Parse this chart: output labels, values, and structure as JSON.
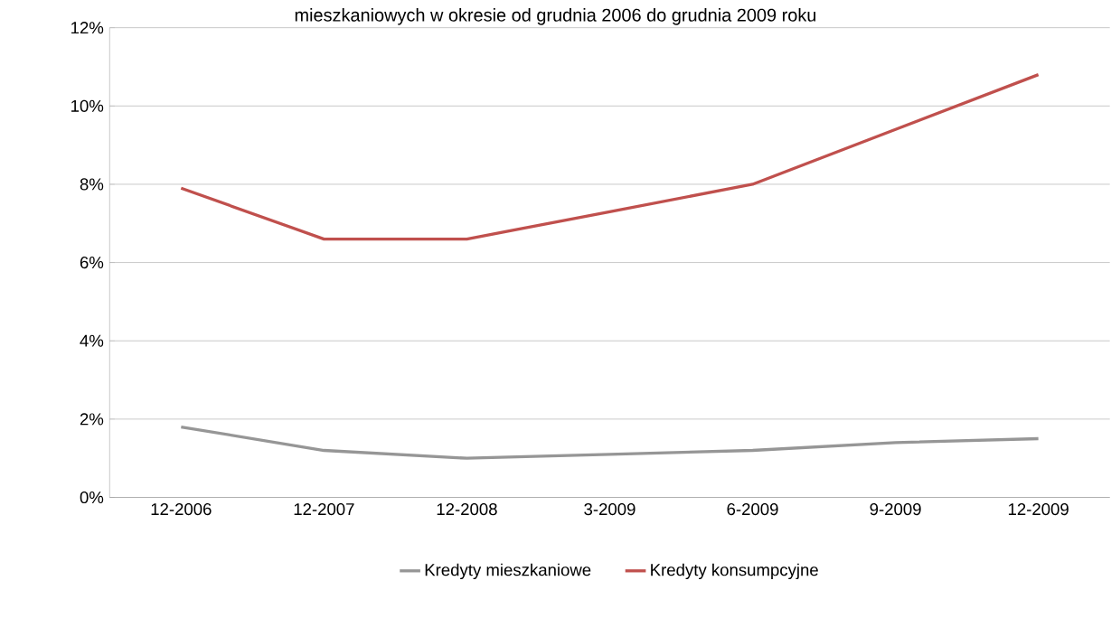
{
  "chart_data": {
    "type": "line",
    "title": "mieszkaniowych w okresie od grudnia 2006 do grudnia 2009 roku",
    "categories": [
      "12-2006",
      "12-2007",
      "12-2008",
      "3-2009",
      "6-2009",
      "9-2009",
      "12-2009"
    ],
    "series": [
      {
        "name": "Kredyty mieszkaniowe",
        "color": "#969696",
        "values": [
          1.8,
          1.2,
          1.0,
          1.1,
          1.2,
          1.4,
          1.5
        ]
      },
      {
        "name": "Kredyty konsumpcyjne",
        "color": "#c0504d",
        "values": [
          7.9,
          6.6,
          6.6,
          7.3,
          8.0,
          9.4,
          10.8
        ]
      }
    ],
    "ylim": [
      0,
      12
    ],
    "yticks": [
      {
        "value": 0,
        "label": "0%"
      },
      {
        "value": 2,
        "label": "2%"
      },
      {
        "value": 4,
        "label": "4%"
      },
      {
        "value": 6,
        "label": "6%"
      },
      {
        "value": 8,
        "label": "8%"
      },
      {
        "value": 10,
        "label": "10%"
      },
      {
        "value": 12,
        "label": "12%"
      }
    ],
    "grid": "y",
    "legend": "bottom",
    "marker": "none",
    "line_style": "solid"
  }
}
